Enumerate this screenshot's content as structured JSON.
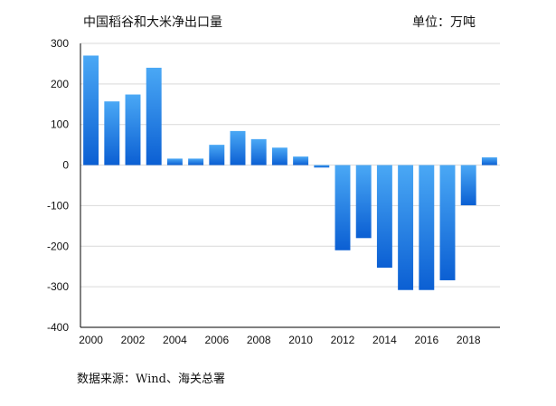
{
  "chart_data": {
    "type": "bar",
    "title": "中国稻谷和大米净出口量",
    "unit_label": "单位：万吨",
    "source": "数据来源：Wind、海关总署",
    "xlabel": "",
    "ylabel": "",
    "ylim": [
      -400,
      300
    ],
    "yticks": [
      300,
      200,
      100,
      0,
      -100,
      -200,
      -300,
      -400
    ],
    "years": [
      2000,
      2001,
      2002,
      2003,
      2004,
      2005,
      2006,
      2007,
      2008,
      2009,
      2010,
      2011,
      2012,
      2013,
      2014,
      2015,
      2016,
      2017,
      2018,
      2019
    ],
    "values": [
      270,
      157,
      174,
      240,
      16,
      16,
      50,
      84,
      64,
      43,
      21,
      -6,
      -210,
      -180,
      -253,
      -308,
      -308,
      -284,
      -99,
      19
    ],
    "xtick_labels": [
      "2000",
      "2002",
      "2004",
      "2006",
      "2008",
      "2010",
      "2012",
      "2014",
      "2016",
      "2018"
    ],
    "colors": {
      "bar_light": "#4aa8f5",
      "bar_dark": "#0b5fd3",
      "grid": "#d9d9d9",
      "axis": "#000000"
    }
  }
}
